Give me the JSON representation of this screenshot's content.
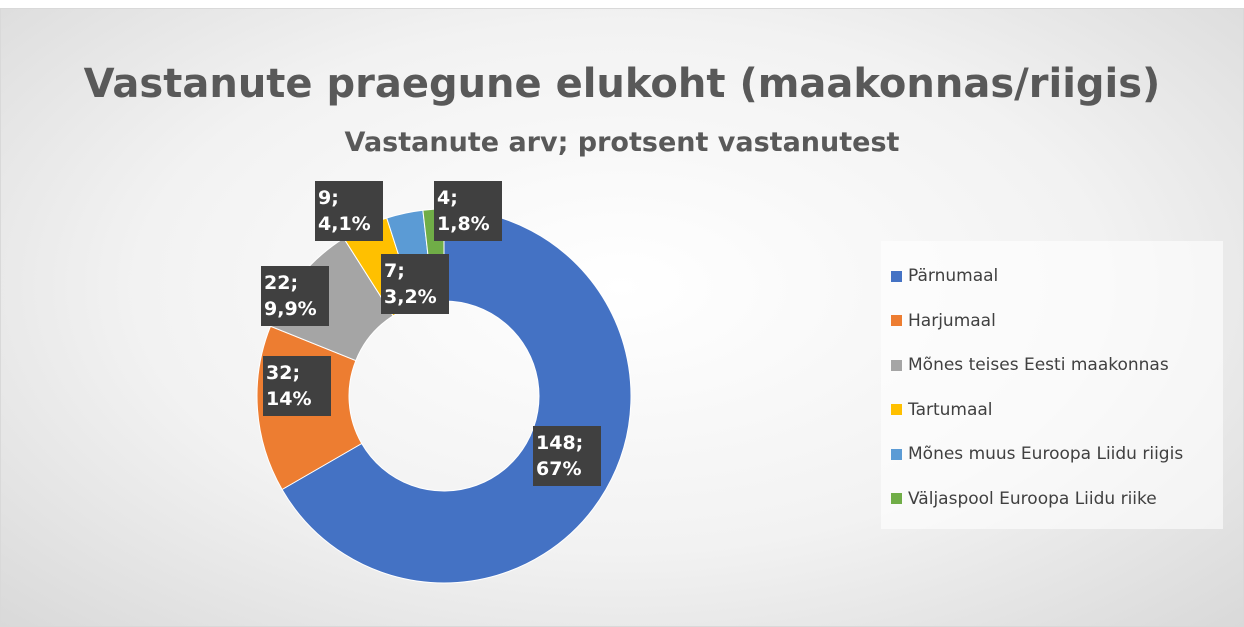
{
  "chart_data": {
    "type": "donut",
    "title": "Vastanute praegune elukoht (maakonnas/riigis)",
    "subtitle": "Vastanute arv; protsent vastanutest",
    "categories": [
      "Pärnumaal",
      "Harjumaal",
      "Mõnes teises Eesti maakonnas",
      "Tartumaal",
      "Mõnes muus Euroopa Liidu riigis",
      "Väljaspool Euroopa Liidu riike"
    ],
    "values": [
      148,
      32,
      22,
      9,
      7,
      4
    ],
    "value_labels": [
      "148; 67%",
      "32; 14%",
      "22; 9,9%",
      "9; 4,1%",
      "7; 3,2%",
      "4; 1,8%"
    ],
    "colors": [
      "#4472c4",
      "#ed7d31",
      "#a5a5a5",
      "#ffc000",
      "#5b9bd5",
      "#70ad47"
    ],
    "legend": "right"
  }
}
